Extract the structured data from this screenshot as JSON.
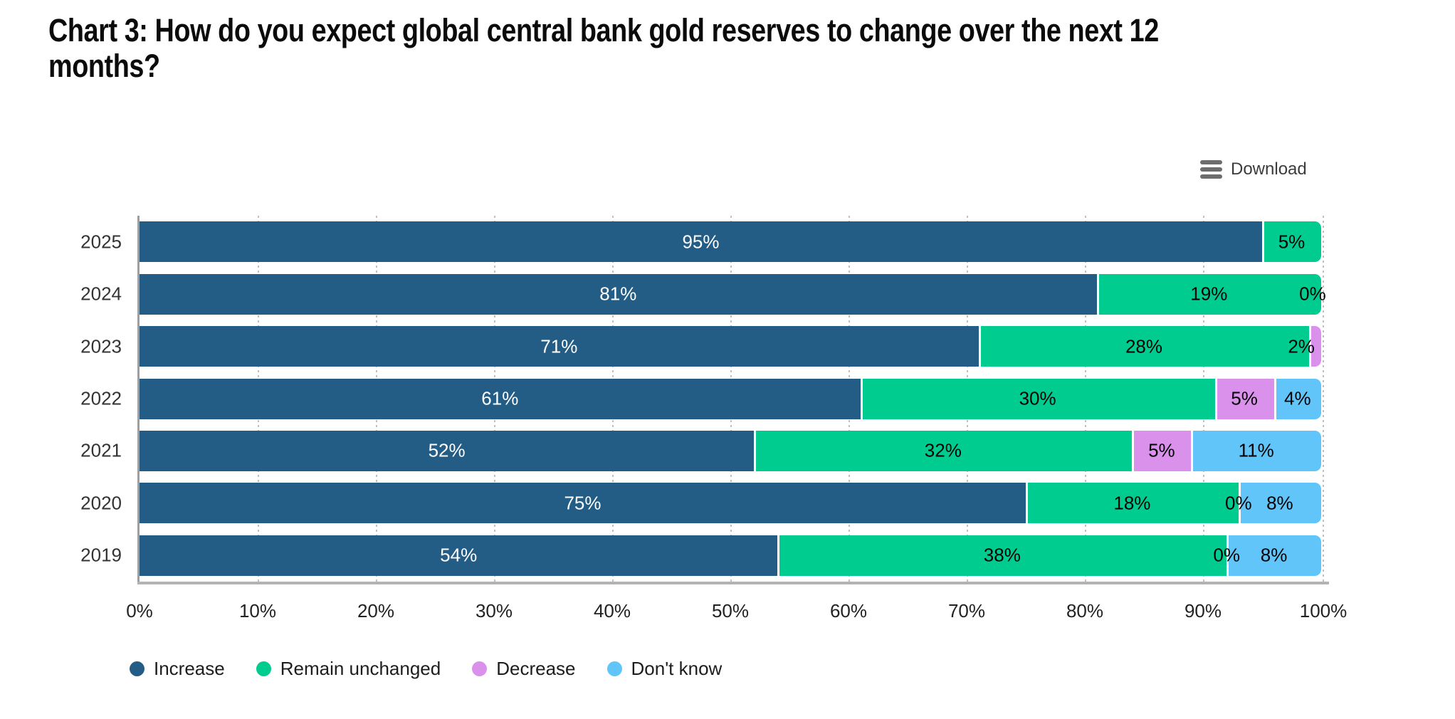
{
  "title": "Chart 3: How do you expect global central bank gold reserves to change over the next 12\nmonths?",
  "toolbar": {
    "download_label": "Download"
  },
  "chart_data": {
    "type": "bar",
    "orientation": "horizontal",
    "stacked": true,
    "unit": "%",
    "title": "Chart 3: How do you expect global central bank gold reserves to change over the next 12 months?",
    "categories": [
      "2025",
      "2024",
      "2023",
      "2022",
      "2021",
      "2020",
      "2019"
    ],
    "series": [
      {
        "name": "Increase",
        "color": "#235c85",
        "label_color": "#ffffff",
        "values": [
          95,
          81,
          71,
          61,
          52,
          75,
          54
        ]
      },
      {
        "name": "Remain unchanged",
        "color": "#00cc90",
        "label_color": "#000000",
        "values": [
          5,
          19,
          28,
          30,
          32,
          18,
          38
        ]
      },
      {
        "name": "Decrease",
        "color": "#da91ec",
        "label_color": "#000000",
        "values": [
          null,
          0,
          2,
          5,
          5,
          0,
          0
        ]
      },
      {
        "name": "Don't know",
        "color": "#61c5fa",
        "label_color": "#000000",
        "values": [
          null,
          null,
          null,
          4,
          11,
          8,
          8
        ]
      }
    ],
    "x_axis": {
      "min": 0,
      "max": 100,
      "ticks": [
        "0%",
        "10%",
        "20%",
        "30%",
        "40%",
        "50%",
        "60%",
        "70%",
        "80%",
        "90%",
        "100%"
      ]
    },
    "legend": {
      "position": "bottom",
      "items": [
        "Increase",
        "Remain unchanged",
        "Decrease",
        "Don't know"
      ]
    },
    "grid": {
      "style": "dotted-vertical",
      "color": "#c0c0c0"
    },
    "axis_color": "#9f9f9f"
  }
}
